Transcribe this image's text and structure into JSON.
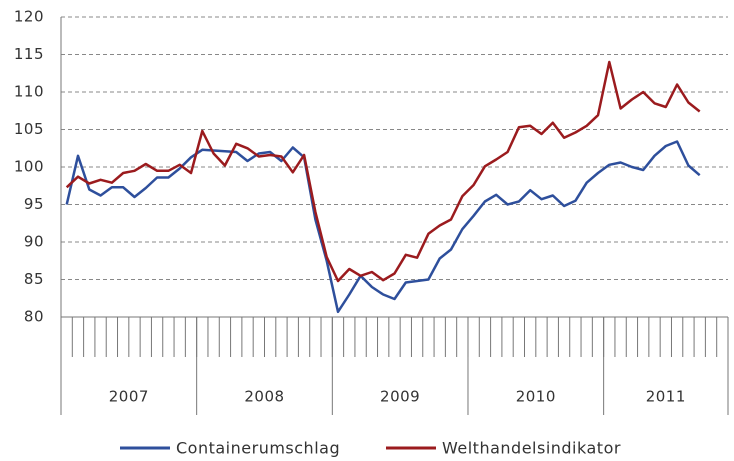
{
  "chart_data": {
    "type": "line",
    "categories": [
      null,
      null,
      null,
      null,
      null,
      null,
      null,
      null,
      null,
      null,
      null,
      null,
      null,
      null,
      null,
      null,
      null,
      null,
      null,
      null,
      null,
      null,
      null,
      null,
      null,
      null,
      null,
      null,
      null,
      null,
      null,
      null,
      null,
      null,
      null,
      null,
      null,
      null,
      null,
      null,
      null,
      null,
      null,
      null,
      null,
      null,
      null,
      null,
      null,
      null,
      null,
      null,
      null,
      null,
      null,
      null,
      null,
      null,
      null
    ],
    "groups": [
      "2007",
      "2008",
      "2009",
      "2010",
      "2011"
    ],
    "series": [
      {
        "name": "Containerumschlag",
        "color": "#2e4f9c",
        "values": [
          95,
          101.5,
          97,
          96.2,
          97.3,
          97.3,
          96,
          97.2,
          98.6,
          98.6,
          99.8,
          101.3,
          102.3,
          102.2,
          102.1,
          102,
          100.8,
          101.8,
          102,
          100.8,
          102.6,
          101.3,
          93,
          87.5,
          80.7,
          83,
          85.5,
          84,
          83,
          82.4,
          84.6,
          84.8,
          85,
          87.8,
          89,
          91.7,
          93.5,
          95.4,
          96.3,
          95,
          95.4,
          96.9,
          95.7,
          96.2,
          94.8,
          95.5,
          97.9,
          99.2,
          100.3,
          100.6,
          100,
          99.6,
          101.5,
          102.8,
          103.4,
          100.2,
          98.9,
          null,
          null
        ]
      },
      {
        "name": "Welthandelsindikator",
        "color": "#9b1b1e",
        "values": [
          97.3,
          98.7,
          97.8,
          98.3,
          97.9,
          99.2,
          99.5,
          100.4,
          99.5,
          99.5,
          100.3,
          99.2,
          104.8,
          101.8,
          100.2,
          103.1,
          102.5,
          101.4,
          101.6,
          101.4,
          99.3,
          101.6,
          94,
          88,
          84.8,
          86.4,
          85.5,
          86,
          84.9,
          85.8,
          88.3,
          87.9,
          91.1,
          92.2,
          93,
          96.1,
          97.6,
          100.1,
          101,
          102,
          105.3,
          105.5,
          104.4,
          105.9,
          103.9,
          104.6,
          105.5,
          106.9,
          114,
          107.8,
          109,
          110,
          108.5,
          108,
          111,
          108.6,
          107.4,
          null,
          null
        ]
      }
    ],
    "ylim": [
      80,
      120
    ],
    "yticks": [
      80,
      85,
      90,
      95,
      100,
      105,
      110,
      115,
      120
    ],
    "grid": true,
    "legend": "bottom"
  }
}
